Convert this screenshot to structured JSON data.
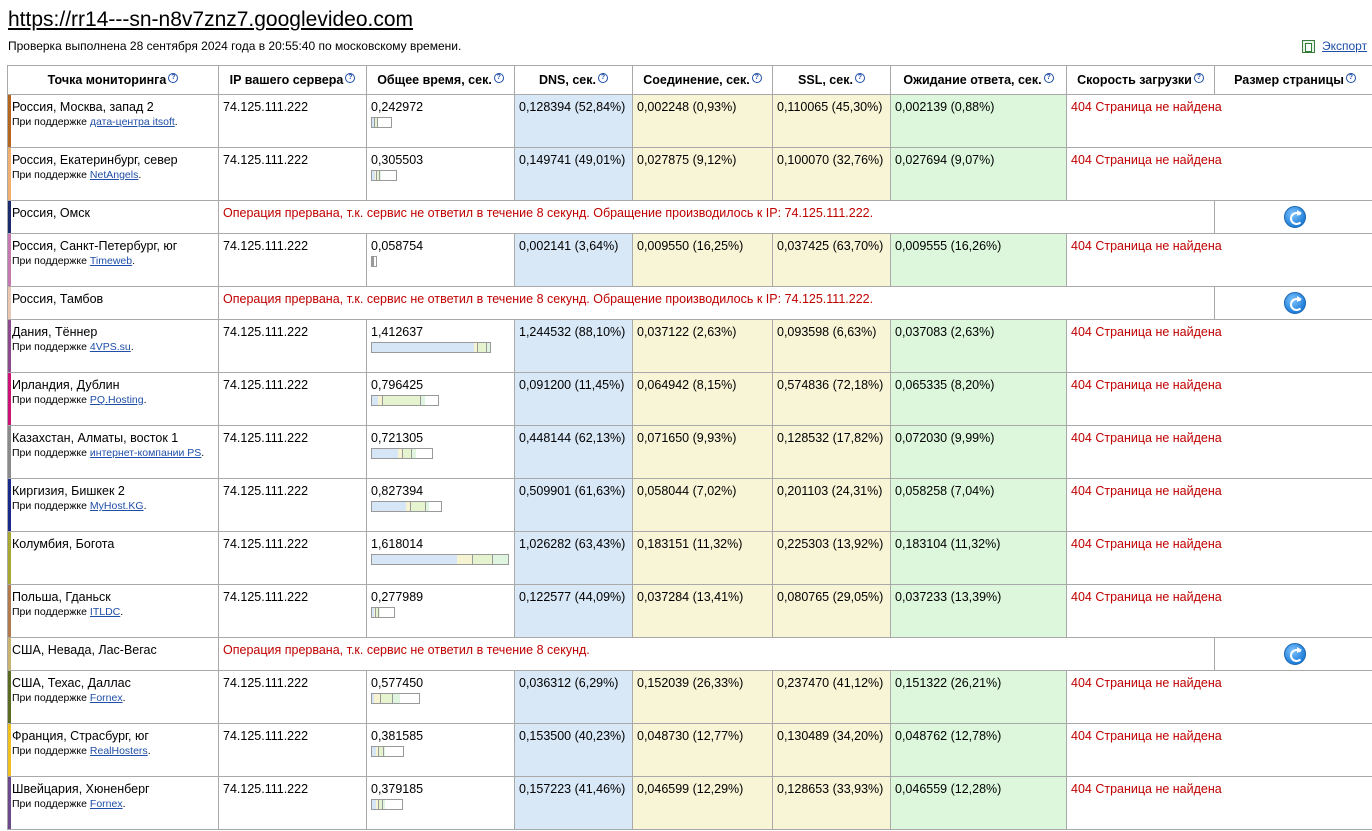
{
  "header": {
    "url": "https://rr14---sn-n8v7znz7.googlevideo.com",
    "check_info": "Проверка выполнена 28 сентября 2024 года в 20:55:40 по московскому времени.",
    "export_label": "Экспорт"
  },
  "columns": {
    "location": "Точка мониторинга",
    "ip": "IP вашего сервера",
    "total": "Общее время, сек.",
    "dns": "DNS, сек.",
    "conn": "Соединение, сек.",
    "ssl": "SSL, сек.",
    "wait": "Ожидание ответа, сек.",
    "speed": "Скорость загрузки",
    "size": "Размер страницы"
  },
  "help_glyph": "?",
  "sponsor_prefix": "При поддержке",
  "rows": [
    {
      "loc": "Россия, Москва, запад 2",
      "sponsor": "дата-центра itsoft",
      "ip": "74.125.111.222",
      "total": "0,242972",
      "total_val": 0.242972,
      "dns": "0,128394 (52,84%)",
      "dns_val": 0.128394,
      "conn": "0,002248 (0,93%)",
      "conn_val": 0.002248,
      "ssl": "0,110065 (45,30%)",
      "ssl_val": 0.110065,
      "wait": "0,002139 (0,88%)",
      "wait_val": 0.002139,
      "status": "404 Страница не найдена",
      "color": "#b5651d"
    },
    {
      "loc": "Россия, Екатеринбург, север",
      "sponsor": "NetAngels",
      "ip": "74.125.111.222",
      "total": "0,305503",
      "total_val": 0.305503,
      "dns": "0,149741 (49,01%)",
      "dns_val": 0.149741,
      "conn": "0,027875 (9,12%)",
      "conn_val": 0.027875,
      "ssl": "0,100070 (32,76%)",
      "ssl_val": 0.10007,
      "wait": "0,027694 (9,07%)",
      "wait_val": 0.027694,
      "status": "404 Страница не найдена",
      "color": "#f0b070"
    },
    {
      "loc": "Россия, Омск",
      "error": "Операция прервана, т.к. сервис не ответил в течение 8 секунд. Обращение производилось к IP: 74.125.111.222.",
      "color": "#1a2a6c"
    },
    {
      "loc": "Россия, Санкт-Петербург, юг",
      "sponsor": "Timeweb",
      "ip": "74.125.111.222",
      "total": "0,058754",
      "total_val": 0.058754,
      "dns": "0,002141 (3,64%)",
      "dns_val": 0.002141,
      "conn": "0,009550 (16,25%)",
      "conn_val": 0.00955,
      "ssl": "0,037425 (63,70%)",
      "ssl_val": 0.037425,
      "wait": "0,009555 (16,26%)",
      "wait_val": 0.009555,
      "status": "404 Страница не найдена",
      "color": "#c47ab0"
    },
    {
      "loc": "Россия, Тамбов",
      "error": "Операция прервана, т.к. сервис не ответил в течение 8 секунд. Обращение производилось к IP: 74.125.111.222.",
      "color": "#e8c8b0"
    },
    {
      "loc": "Дания, Тённер",
      "sponsor": "4VPS.su",
      "ip": "74.125.111.222",
      "total": "1,412637",
      "total_val": 1.412637,
      "dns": "1,244532 (88,10%)",
      "dns_val": 1.244532,
      "conn": "0,037122 (2,63%)",
      "conn_val": 0.037122,
      "ssl": "0,093598 (6,63%)",
      "ssl_val": 0.093598,
      "wait": "0,037083 (2,63%)",
      "wait_val": 0.037083,
      "status": "404 Страница не найдена",
      "color": "#8b4a8b"
    },
    {
      "loc": "Ирландия, Дублин",
      "sponsor": "PQ.Hosting",
      "ip": "74.125.111.222",
      "total": "0,796425",
      "total_val": 0.796425,
      "dns": "0,091200 (11,45%)",
      "dns_val": 0.0912,
      "conn": "0,064942 (8,15%)",
      "conn_val": 0.064942,
      "ssl": "0,574836 (72,18%)",
      "ssl_val": 0.574836,
      "wait": "0,065335 (8,20%)",
      "wait_val": 0.065335,
      "status": "404 Страница не найдена",
      "color": "#cc1177"
    },
    {
      "loc": "Казахстан, Алматы, восток 1",
      "sponsor": "интернет-компании PS",
      "ip": "74.125.111.222",
      "total": "0,721305",
      "total_val": 0.721305,
      "dns": "0,448144 (62,13%)",
      "dns_val": 0.448144,
      "conn": "0,071650 (9,93%)",
      "conn_val": 0.07165,
      "ssl": "0,128532 (17,82%)",
      "ssl_val": 0.128532,
      "wait": "0,072030 (9,99%)",
      "wait_val": 0.07203,
      "status": "404 Страница не найдена",
      "color": "#8a8a8a"
    },
    {
      "loc": "Киргизия, Бишкек 2",
      "sponsor": "MyHost.KG",
      "ip": "74.125.111.222",
      "total": "0,827394",
      "total_val": 0.827394,
      "dns": "0,509901 (61,63%)",
      "dns_val": 0.509901,
      "conn": "0,058044 (7,02%)",
      "conn_val": 0.058044,
      "ssl": "0,201103 (24,31%)",
      "ssl_val": 0.201103,
      "wait": "0,058258 (7,04%)",
      "wait_val": 0.058258,
      "status": "404 Страница не найдена",
      "color": "#1a2a8c"
    },
    {
      "loc": "Колумбия, Богота",
      "ip": "74.125.111.222",
      "total": "1,618014",
      "total_val": 1.618014,
      "dns": "1,026282 (63,43%)",
      "dns_val": 1.026282,
      "conn": "0,183151 (11,32%)",
      "conn_val": 0.183151,
      "ssl": "0,225303 (13,92%)",
      "ssl_val": 0.225303,
      "wait": "0,183104 (11,32%)",
      "wait_val": 0.183104,
      "status": "404 Страница не найдена",
      "color": "#a8a830"
    },
    {
      "loc": "Польша, Гданьск",
      "sponsor": "ITLDC",
      "ip": "74.125.111.222",
      "total": "0,277989",
      "total_val": 0.277989,
      "dns": "0,122577 (44,09%)",
      "dns_val": 0.122577,
      "conn": "0,037284 (13,41%)",
      "conn_val": 0.037284,
      "ssl": "0,080765 (29,05%)",
      "ssl_val": 0.080765,
      "wait": "0,037233 (13,39%)",
      "wait_val": 0.037233,
      "status": "404 Страница не найдена",
      "color": "#b07a50"
    },
    {
      "loc": "США, Невада, Лас-Вегас",
      "error": "Операция прервана, т.к. сервис не ответил в течение 8 секунд.",
      "color": "#c8b470"
    },
    {
      "loc": "США, Техас, Даллас",
      "sponsor": "Fornex",
      "ip": "74.125.111.222",
      "total": "0,577450",
      "total_val": 0.57745,
      "dns": "0,036312 (6,29%)",
      "dns_val": 0.036312,
      "conn": "0,152039 (26,33%)",
      "conn_val": 0.152039,
      "ssl": "0,237470 (41,12%)",
      "ssl_val": 0.23747,
      "wait": "0,151322 (26,21%)",
      "wait_val": 0.151322,
      "status": "404 Страница не найдена",
      "color": "#5a6a20"
    },
    {
      "loc": "Франция, Страсбург, юг",
      "sponsor": "RealHosters",
      "ip": "74.125.111.222",
      "total": "0,381585",
      "total_val": 0.381585,
      "dns": "0,153500 (40,23%)",
      "dns_val": 0.1535,
      "conn": "0,048730 (12,77%)",
      "conn_val": 0.04873,
      "ssl": "0,130489 (34,20%)",
      "ssl_val": 0.130489,
      "wait": "0,048762 (12,78%)",
      "wait_val": 0.048762,
      "status": "404 Страница не найдена",
      "color": "#f0c020"
    },
    {
      "loc": "Швейцария, Хюненберг",
      "sponsor": "Fornex",
      "ip": "74.125.111.222",
      "total": "0,379185",
      "total_val": 0.379185,
      "dns": "0,157223 (41,46%)",
      "dns_val": 0.157223,
      "conn": "0,046599 (12,29%)",
      "conn_val": 0.046599,
      "ssl": "0,128653 (33,93%)",
      "ssl_val": 0.128653,
      "wait": "0,046559 (12,28%)",
      "wait_val": 0.046559,
      "status": "404 Страница не найдена",
      "color": "#6a4a8a"
    }
  ]
}
